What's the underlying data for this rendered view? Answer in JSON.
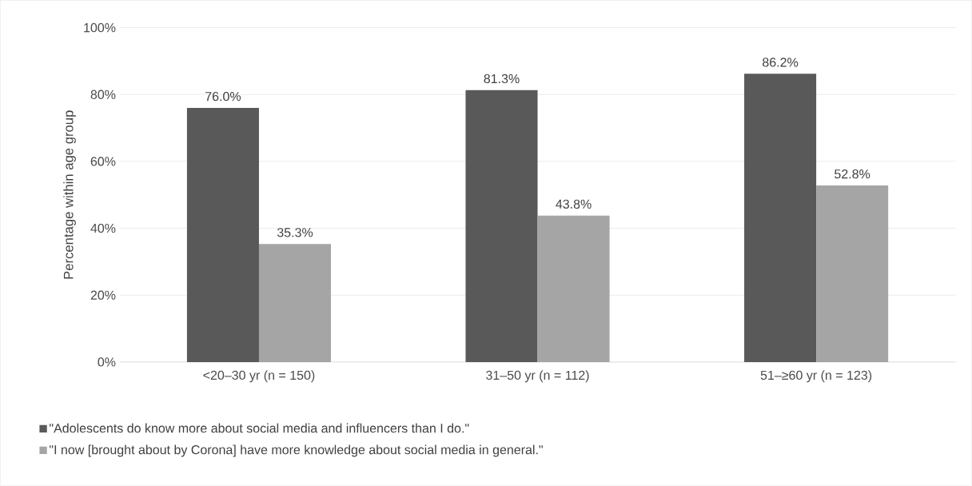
{
  "chart_data": {
    "type": "bar",
    "ylabel": "Percentage within age group",
    "categories": [
      "<20–30 yr (n = 150)",
      "31–50 yr (n = 112)",
      "51–≥60 yr (n = 123)"
    ],
    "series": [
      {
        "name": "\"Adolescents do know more about social media and influencers than I do.\"",
        "color": "#595959",
        "values": [
          76.0,
          81.3,
          86.2
        ],
        "value_labels": [
          "76.0%",
          "81.3%",
          "86.2%"
        ]
      },
      {
        "name": "\"I now [brought about by Corona] have more knowledge about social media in general.\"",
        "color": "#a5a5a5",
        "values": [
          35.3,
          43.8,
          52.8
        ],
        "value_labels": [
          "35.3%",
          "43.8%",
          "52.8%"
        ]
      }
    ],
    "ylim": [
      0,
      100
    ],
    "yticks": [
      {
        "value": 0,
        "label": "0%"
      },
      {
        "value": 20,
        "label": "20%"
      },
      {
        "value": 40,
        "label": "40%"
      },
      {
        "value": 60,
        "label": "60%"
      },
      {
        "value": 80,
        "label": "80%"
      },
      {
        "value": 100,
        "label": "100%"
      }
    ],
    "grid": "y",
    "legend": "bottom"
  }
}
